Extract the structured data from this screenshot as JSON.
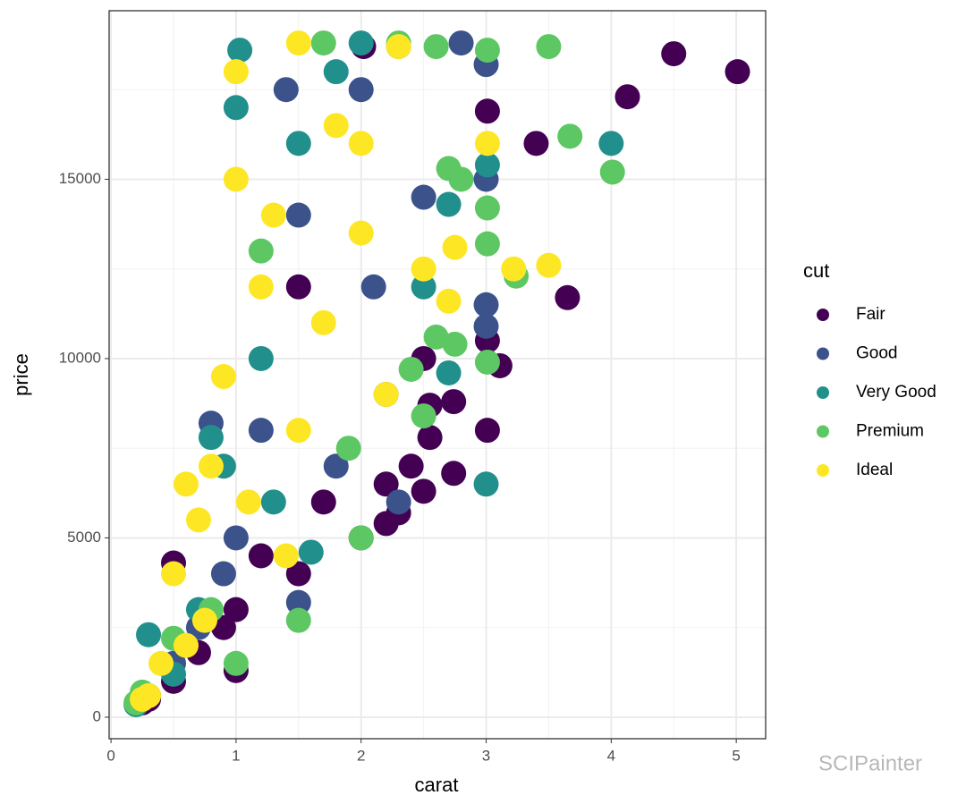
{
  "chart_data": {
    "type": "scatter",
    "xlabel": "carat",
    "ylabel": "price",
    "legend_title": "cut",
    "legend_position": "right",
    "watermark": "SCIPainter",
    "xlim": [
      -0.015,
      5.235
    ],
    "ylim": [
      -600,
      19700
    ],
    "xticks": [
      0,
      1,
      2,
      3,
      4,
      5
    ],
    "yticks": [
      0,
      5000,
      10000,
      15000
    ],
    "minor_xticks": [
      0.5,
      1.5,
      2.5,
      3.5,
      4.5
    ],
    "minor_yticks": [
      2500,
      7500,
      12500,
      17500
    ],
    "grid": true,
    "series": [
      {
        "name": "Fair",
        "color": "#440154",
        "x": [
          4.5,
          5.01,
          4.13,
          3.4,
          3.65,
          3.01,
          3.01,
          3.11,
          2.74,
          2.5,
          2.55,
          2.55,
          2.74,
          2.3,
          2.2,
          2.0,
          1.5,
          1.0,
          0.7,
          0.5,
          0.3,
          0.25,
          2.02,
          1.5,
          1.0,
          0.9,
          1.2,
          2.5,
          3.01,
          0.5,
          1.7,
          2.4,
          2.2
        ],
        "y": [
          18500,
          18000,
          17300,
          16000,
          11700,
          16900,
          8000,
          9800,
          6800,
          6300,
          7800,
          8700,
          8800,
          5700,
          5400,
          5000,
          4000,
          1300,
          1800,
          1000,
          500,
          400,
          18700,
          12000,
          3000,
          2500,
          4500,
          10000,
          10500,
          4300,
          6000,
          7000,
          6500
        ]
      },
      {
        "name": "Good",
        "color": "#3b528b",
        "x": [
          2.8,
          3.0,
          3.0,
          3.0,
          3.0,
          2.5,
          2.0,
          1.5,
          1.2,
          1.0,
          0.9,
          0.7,
          0.5,
          0.3,
          2.1,
          1.5,
          2.3,
          1.4,
          0.8,
          2.2,
          1.8
        ],
        "y": [
          18800,
          18200,
          15000,
          11500,
          10900,
          14500,
          17500,
          14000,
          8000,
          5000,
          4000,
          2500,
          1500,
          600,
          12000,
          3200,
          6000,
          17500,
          8200,
          9000,
          7000
        ]
      },
      {
        "name": "Very Good",
        "color": "#21908c",
        "x": [
          1.03,
          2.0,
          4.0,
          3.01,
          3.0,
          2.7,
          2.7,
          2.3,
          1.5,
          1.0,
          1.2,
          0.9,
          0.7,
          0.3,
          0.2,
          0.5,
          1.6,
          2.5,
          1.8,
          0.8,
          1.3
        ],
        "y": [
          18600,
          18800,
          16000,
          15400,
          6500,
          9600,
          14300,
          18700,
          16000,
          17000,
          10000,
          7000,
          3000,
          2300,
          350,
          1200,
          4600,
          12000,
          18000,
          7800,
          6000
        ]
      },
      {
        "name": "Premium",
        "color": "#5dc863",
        "x": [
          3.5,
          3.67,
          4.01,
          3.24,
          3.01,
          3.01,
          3.01,
          3.01,
          2.8,
          2.75,
          2.6,
          2.5,
          2.4,
          2.0,
          1.5,
          1.7,
          2.3,
          2.6,
          1.0,
          0.5,
          0.25,
          0.2,
          1.9,
          1.2,
          0.8,
          2.7
        ],
        "y": [
          18700,
          16200,
          15200,
          12300,
          18600,
          14200,
          13200,
          9900,
          15000,
          10400,
          10600,
          8400,
          9700,
          5000,
          2700,
          18800,
          18800,
          18700,
          1500,
          2200,
          700,
          400,
          7500,
          13000,
          3000,
          15300
        ]
      },
      {
        "name": "Ideal",
        "color": "#fde725",
        "x": [
          3.5,
          3.22,
          3.01,
          2.75,
          2.7,
          2.5,
          2.3,
          2.0,
          1.5,
          1.0,
          1.0,
          1.2,
          0.9,
          0.8,
          0.7,
          0.6,
          0.5,
          0.75,
          0.4,
          0.3,
          0.25,
          1.5,
          1.3,
          2.2,
          1.7,
          2.0,
          1.1,
          1.8,
          0.6,
          1.4
        ],
        "y": [
          12600,
          12500,
          16000,
          13100,
          11600,
          12500,
          18700,
          16000,
          18800,
          18000,
          15000,
          12000,
          9500,
          7000,
          5500,
          6500,
          4000,
          2700,
          1500,
          600,
          500,
          8000,
          14000,
          9000,
          11000,
          13500,
          6000,
          16500,
          2000,
          4500
        ]
      }
    ]
  }
}
